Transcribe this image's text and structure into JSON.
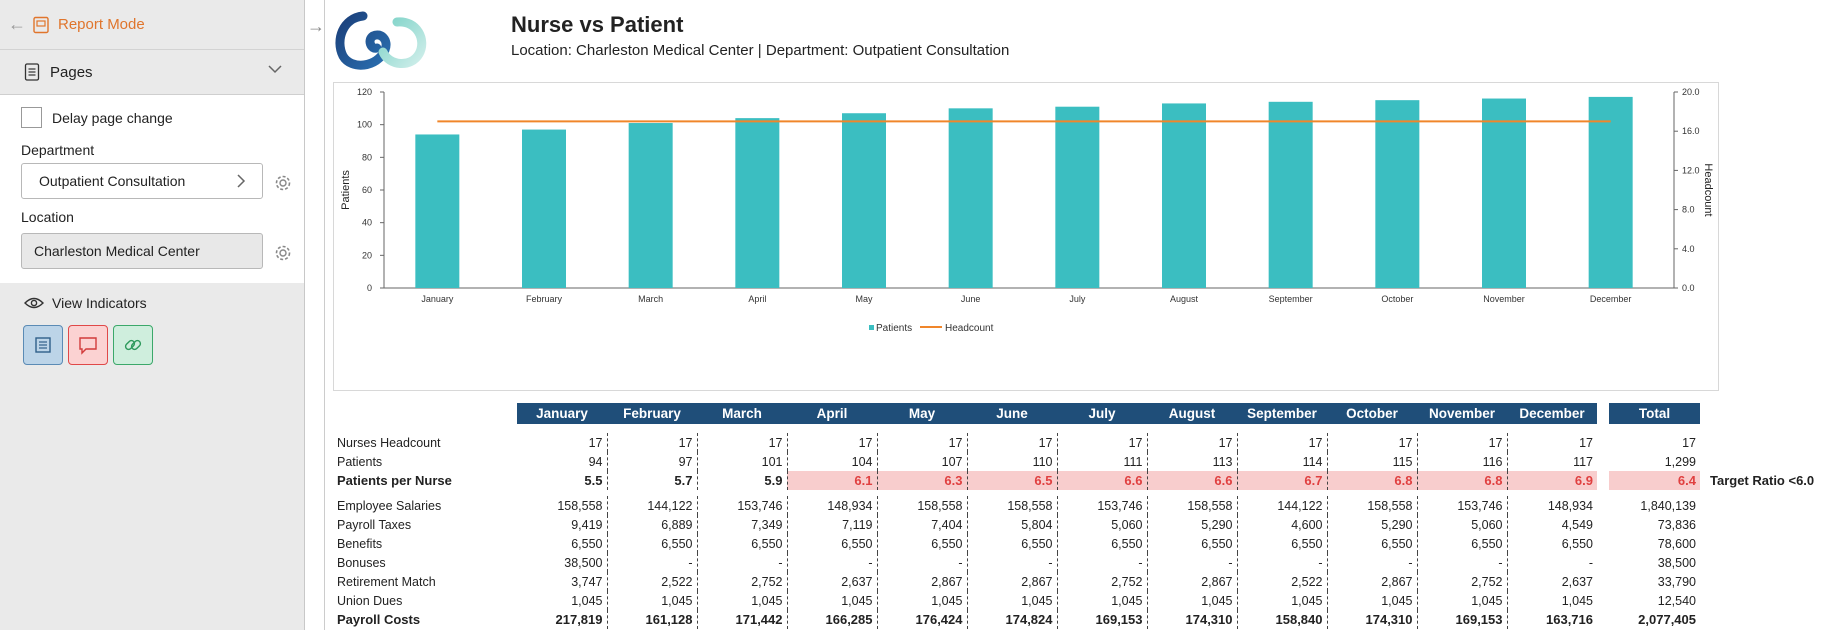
{
  "sidebar": {
    "mode_label": "Report Mode",
    "pages_label": "Pages",
    "delay_label": "Delay page change",
    "department_label": "Department",
    "department_value": "Outpatient Consultation",
    "location_label": "Location",
    "location_value": "Charleston Medical Center",
    "indicators_label": "View Indicators"
  },
  "report": {
    "title": "Nurse vs Patient",
    "subtitle": "Location: Charleston Medical Center | Department: Outpatient Consultation"
  },
  "chart_data": {
    "type": "bar",
    "categories": [
      "January",
      "February",
      "March",
      "April",
      "May",
      "June",
      "July",
      "August",
      "September",
      "October",
      "November",
      "December"
    ],
    "series": [
      {
        "name": "Patients",
        "type": "bar",
        "axis": "left",
        "values": [
          94,
          97,
          101,
          104,
          107,
          110,
          111,
          113,
          114,
          115,
          116,
          117
        ],
        "color": "#3bbec1"
      },
      {
        "name": "Headcount",
        "type": "line",
        "axis": "right",
        "values": [
          17,
          17,
          17,
          17,
          17,
          17,
          17,
          17,
          17,
          17,
          17,
          17
        ],
        "color": "#f0862a"
      }
    ],
    "ylabel": "Patients",
    "y2label": "Headcount",
    "ylim": [
      0,
      120
    ],
    "yticks": [
      "0",
      "20",
      "40",
      "60",
      "80",
      "100",
      "120"
    ],
    "y2lim": [
      0,
      20
    ],
    "y2ticks": [
      "0.0",
      "4.0",
      "8.0",
      "12.0",
      "16.0",
      "20.0"
    ],
    "legend": "bottom-center"
  },
  "table": {
    "months": [
      "January",
      "February",
      "March",
      "April",
      "May",
      "June",
      "July",
      "August",
      "September",
      "October",
      "November",
      "December"
    ],
    "total_label": "Total",
    "rows1": [
      {
        "label": "Nurses Headcount",
        "values": [
          "17",
          "17",
          "17",
          "17",
          "17",
          "17",
          "17",
          "17",
          "17",
          "17",
          "17",
          "17"
        ],
        "total": "17"
      },
      {
        "label": "Patients",
        "values": [
          "94",
          "97",
          "101",
          "104",
          "107",
          "110",
          "111",
          "113",
          "114",
          "115",
          "116",
          "117"
        ],
        "total": "1,299"
      }
    ],
    "ratio": {
      "label": "Patients per Nurse",
      "values": [
        "5.5",
        "5.7",
        "5.9",
        "6.1",
        "6.3",
        "6.5",
        "6.6",
        "6.6",
        "6.7",
        "6.8",
        "6.8",
        "6.9"
      ],
      "total": "6.4",
      "highlight": [
        false,
        false,
        false,
        true,
        true,
        true,
        true,
        true,
        true,
        true,
        true,
        true
      ],
      "note": "Target Ratio <6.0"
    },
    "rows2": [
      {
        "label": "Employee Salaries",
        "values": [
          "158,558",
          "144,122",
          "153,746",
          "148,934",
          "158,558",
          "158,558",
          "153,746",
          "158,558",
          "144,122",
          "158,558",
          "153,746",
          "148,934"
        ],
        "total": "1,840,139"
      },
      {
        "label": "Payroll Taxes",
        "values": [
          "9,419",
          "6,889",
          "7,349",
          "7,119",
          "7,404",
          "5,804",
          "5,060",
          "5,290",
          "4,600",
          "5,290",
          "5,060",
          "4,549"
        ],
        "total": "73,836"
      },
      {
        "label": "Benefits",
        "values": [
          "6,550",
          "6,550",
          "6,550",
          "6,550",
          "6,550",
          "6,550",
          "6,550",
          "6,550",
          "6,550",
          "6,550",
          "6,550",
          "6,550"
        ],
        "total": "78,600"
      },
      {
        "label": "Bonuses",
        "values": [
          "38,500",
          "-",
          "-",
          "-",
          "-",
          "-",
          "-",
          "-",
          "-",
          "-",
          "-",
          "-"
        ],
        "total": "38,500"
      },
      {
        "label": "Retirement Match",
        "values": [
          "3,747",
          "2,522",
          "2,752",
          "2,637",
          "2,867",
          "2,867",
          "2,752",
          "2,867",
          "2,522",
          "2,867",
          "2,752",
          "2,637"
        ],
        "total": "33,790"
      },
      {
        "label": "Union Dues",
        "values": [
          "1,045",
          "1,045",
          "1,045",
          "1,045",
          "1,045",
          "1,045",
          "1,045",
          "1,045",
          "1,045",
          "1,045",
          "1,045",
          "1,045"
        ],
        "total": "12,540"
      }
    ],
    "payroll": {
      "label": "Payroll Costs",
      "values": [
        "217,819",
        "161,128",
        "171,442",
        "166,285",
        "176,424",
        "174,824",
        "169,153",
        "174,310",
        "158,840",
        "174,310",
        "169,153",
        "163,716"
      ],
      "total": "2,077,405"
    }
  }
}
